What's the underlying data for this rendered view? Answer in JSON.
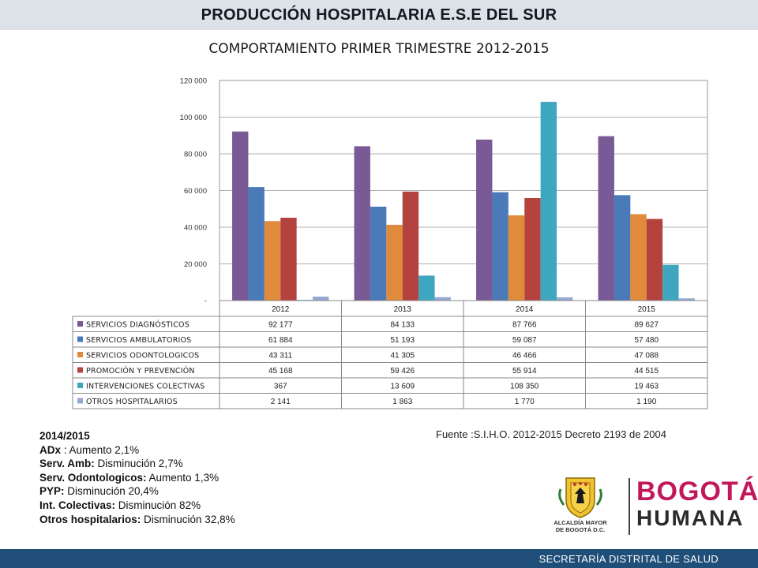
{
  "header": {
    "title": "PRODUCCIÓN HOSPITALARIA E.S.E DEL SUR"
  },
  "footer": {
    "text": "SECRETARÍA DISTRITAL DE SALUD"
  },
  "chart_data": {
    "type": "bar",
    "title": "COMPORTAMIENTO PRIMER TRIMESTRE 2012-2015",
    "categories": [
      "2012",
      "2013",
      "2014",
      "2015"
    ],
    "ylim": [
      0,
      120000
    ],
    "yticks": [
      0,
      20000,
      40000,
      60000,
      80000,
      100000,
      120000
    ],
    "ytick_labels": [
      "-",
      "20 000",
      "40 000",
      "60 000",
      "80 000",
      "100 000",
      "120 000"
    ],
    "grid": true,
    "legend": "data-table-below",
    "series": [
      {
        "name": "SERVICIOS DIAGNÓSTICOS",
        "color": "#7a5a96",
        "values": [
          92177,
          84133,
          87766,
          89627
        ],
        "labels": [
          "92 177",
          "84 133",
          "87 766",
          "89 627"
        ]
      },
      {
        "name": "SERVICIOS AMBULATORIOS",
        "color": "#4a7ab8",
        "values": [
          61884,
          51193,
          59087,
          57480
        ],
        "labels": [
          "61 884",
          "51 193",
          "59 087",
          "57 480"
        ]
      },
      {
        "name": "SERVICIOS ODONTOLOGICOS",
        "color": "#e08a3c",
        "values": [
          43311,
          41305,
          46466,
          47088
        ],
        "labels": [
          "43 311",
          "41 305",
          "46 466",
          "47 088"
        ]
      },
      {
        "name": "PROMOCIÓN Y PREVENCIÓN",
        "color": "#b4433f",
        "values": [
          45168,
          59426,
          55914,
          44515
        ],
        "labels": [
          "45 168",
          "59 426",
          "55 914",
          "44 515"
        ]
      },
      {
        "name": "INTERVENCIONES COLECTIVAS",
        "color": "#3fa6bf",
        "values": [
          367,
          13609,
          108350,
          19463
        ],
        "labels": [
          "367",
          "13 609",
          "108 350",
          "19 463"
        ]
      },
      {
        "name": "OTROS HOSPITALARIOS",
        "color": "#93a9d2",
        "values": [
          2141,
          1863,
          1770,
          1190
        ],
        "labels": [
          "2 141",
          "1 863",
          "1 770",
          "1 190"
        ]
      }
    ]
  },
  "notes": {
    "heading": "2014/2015",
    "items": [
      {
        "label": "ADx",
        "text": " : Aumento 2,1%"
      },
      {
        "label": "Serv. Amb:",
        "text": " Disminución 2,7%"
      },
      {
        "label": "Serv. Odontologicos:",
        "text": " Aumento 1,3%"
      },
      {
        "label": "PYP:",
        "text": " Disminución 20,4%"
      },
      {
        "label": "Int. Colectivas:",
        "text": " Disminución 82%"
      },
      {
        "label": "Otros hospitalarios:",
        "text": " Disminución 32,8%"
      }
    ]
  },
  "source": {
    "text": "Fuente :S.I.H.O. 2012-2015  Decreto 2193 de 2004"
  },
  "logos": {
    "alcaldia_line1": "ALCALDÍA MAYOR",
    "alcaldia_line2": "DE BOGOTÁ D.C.",
    "bogota": "BOGOTÁ",
    "humana": "HUMANA"
  }
}
